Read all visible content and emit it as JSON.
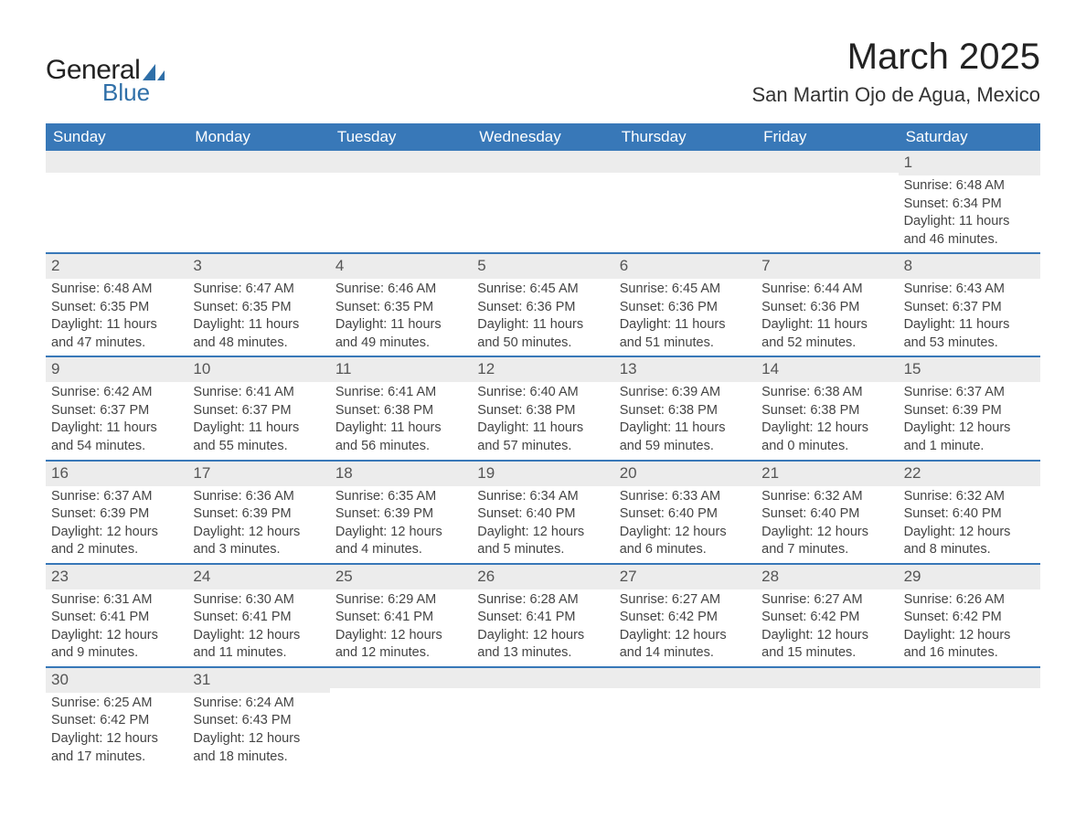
{
  "logo": {
    "general": "General",
    "blue": "Blue"
  },
  "title": "March 2025",
  "location": "San Martin Ojo de Agua, Mexico",
  "colors": {
    "header_bg": "#3878b8",
    "header_text": "#ffffff",
    "daynum_bg": "#ececec",
    "border": "#3878b8",
    "text": "#444444",
    "logo_blue": "#2f6fa8"
  },
  "dow": [
    "Sunday",
    "Monday",
    "Tuesday",
    "Wednesday",
    "Thursday",
    "Friday",
    "Saturday"
  ],
  "days": [
    {
      "n": "",
      "sr": "",
      "ss": "",
      "dl1": "",
      "dl2": ""
    },
    {
      "n": "",
      "sr": "",
      "ss": "",
      "dl1": "",
      "dl2": ""
    },
    {
      "n": "",
      "sr": "",
      "ss": "",
      "dl1": "",
      "dl2": ""
    },
    {
      "n": "",
      "sr": "",
      "ss": "",
      "dl1": "",
      "dl2": ""
    },
    {
      "n": "",
      "sr": "",
      "ss": "",
      "dl1": "",
      "dl2": ""
    },
    {
      "n": "",
      "sr": "",
      "ss": "",
      "dl1": "",
      "dl2": ""
    },
    {
      "n": "1",
      "sr": "Sunrise: 6:48 AM",
      "ss": "Sunset: 6:34 PM",
      "dl1": "Daylight: 11 hours",
      "dl2": "and 46 minutes."
    },
    {
      "n": "2",
      "sr": "Sunrise: 6:48 AM",
      "ss": "Sunset: 6:35 PM",
      "dl1": "Daylight: 11 hours",
      "dl2": "and 47 minutes."
    },
    {
      "n": "3",
      "sr": "Sunrise: 6:47 AM",
      "ss": "Sunset: 6:35 PM",
      "dl1": "Daylight: 11 hours",
      "dl2": "and 48 minutes."
    },
    {
      "n": "4",
      "sr": "Sunrise: 6:46 AM",
      "ss": "Sunset: 6:35 PM",
      "dl1": "Daylight: 11 hours",
      "dl2": "and 49 minutes."
    },
    {
      "n": "5",
      "sr": "Sunrise: 6:45 AM",
      "ss": "Sunset: 6:36 PM",
      "dl1": "Daylight: 11 hours",
      "dl2": "and 50 minutes."
    },
    {
      "n": "6",
      "sr": "Sunrise: 6:45 AM",
      "ss": "Sunset: 6:36 PM",
      "dl1": "Daylight: 11 hours",
      "dl2": "and 51 minutes."
    },
    {
      "n": "7",
      "sr": "Sunrise: 6:44 AM",
      "ss": "Sunset: 6:36 PM",
      "dl1": "Daylight: 11 hours",
      "dl2": "and 52 minutes."
    },
    {
      "n": "8",
      "sr": "Sunrise: 6:43 AM",
      "ss": "Sunset: 6:37 PM",
      "dl1": "Daylight: 11 hours",
      "dl2": "and 53 minutes."
    },
    {
      "n": "9",
      "sr": "Sunrise: 6:42 AM",
      "ss": "Sunset: 6:37 PM",
      "dl1": "Daylight: 11 hours",
      "dl2": "and 54 minutes."
    },
    {
      "n": "10",
      "sr": "Sunrise: 6:41 AM",
      "ss": "Sunset: 6:37 PM",
      "dl1": "Daylight: 11 hours",
      "dl2": "and 55 minutes."
    },
    {
      "n": "11",
      "sr": "Sunrise: 6:41 AM",
      "ss": "Sunset: 6:38 PM",
      "dl1": "Daylight: 11 hours",
      "dl2": "and 56 minutes."
    },
    {
      "n": "12",
      "sr": "Sunrise: 6:40 AM",
      "ss": "Sunset: 6:38 PM",
      "dl1": "Daylight: 11 hours",
      "dl2": "and 57 minutes."
    },
    {
      "n": "13",
      "sr": "Sunrise: 6:39 AM",
      "ss": "Sunset: 6:38 PM",
      "dl1": "Daylight: 11 hours",
      "dl2": "and 59 minutes."
    },
    {
      "n": "14",
      "sr": "Sunrise: 6:38 AM",
      "ss": "Sunset: 6:38 PM",
      "dl1": "Daylight: 12 hours",
      "dl2": "and 0 minutes."
    },
    {
      "n": "15",
      "sr": "Sunrise: 6:37 AM",
      "ss": "Sunset: 6:39 PM",
      "dl1": "Daylight: 12 hours",
      "dl2": "and 1 minute."
    },
    {
      "n": "16",
      "sr": "Sunrise: 6:37 AM",
      "ss": "Sunset: 6:39 PM",
      "dl1": "Daylight: 12 hours",
      "dl2": "and 2 minutes."
    },
    {
      "n": "17",
      "sr": "Sunrise: 6:36 AM",
      "ss": "Sunset: 6:39 PM",
      "dl1": "Daylight: 12 hours",
      "dl2": "and 3 minutes."
    },
    {
      "n": "18",
      "sr": "Sunrise: 6:35 AM",
      "ss": "Sunset: 6:39 PM",
      "dl1": "Daylight: 12 hours",
      "dl2": "and 4 minutes."
    },
    {
      "n": "19",
      "sr": "Sunrise: 6:34 AM",
      "ss": "Sunset: 6:40 PM",
      "dl1": "Daylight: 12 hours",
      "dl2": "and 5 minutes."
    },
    {
      "n": "20",
      "sr": "Sunrise: 6:33 AM",
      "ss": "Sunset: 6:40 PM",
      "dl1": "Daylight: 12 hours",
      "dl2": "and 6 minutes."
    },
    {
      "n": "21",
      "sr": "Sunrise: 6:32 AM",
      "ss": "Sunset: 6:40 PM",
      "dl1": "Daylight: 12 hours",
      "dl2": "and 7 minutes."
    },
    {
      "n": "22",
      "sr": "Sunrise: 6:32 AM",
      "ss": "Sunset: 6:40 PM",
      "dl1": "Daylight: 12 hours",
      "dl2": "and 8 minutes."
    },
    {
      "n": "23",
      "sr": "Sunrise: 6:31 AM",
      "ss": "Sunset: 6:41 PM",
      "dl1": "Daylight: 12 hours",
      "dl2": "and 9 minutes."
    },
    {
      "n": "24",
      "sr": "Sunrise: 6:30 AM",
      "ss": "Sunset: 6:41 PM",
      "dl1": "Daylight: 12 hours",
      "dl2": "and 11 minutes."
    },
    {
      "n": "25",
      "sr": "Sunrise: 6:29 AM",
      "ss": "Sunset: 6:41 PM",
      "dl1": "Daylight: 12 hours",
      "dl2": "and 12 minutes."
    },
    {
      "n": "26",
      "sr": "Sunrise: 6:28 AM",
      "ss": "Sunset: 6:41 PM",
      "dl1": "Daylight: 12 hours",
      "dl2": "and 13 minutes."
    },
    {
      "n": "27",
      "sr": "Sunrise: 6:27 AM",
      "ss": "Sunset: 6:42 PM",
      "dl1": "Daylight: 12 hours",
      "dl2": "and 14 minutes."
    },
    {
      "n": "28",
      "sr": "Sunrise: 6:27 AM",
      "ss": "Sunset: 6:42 PM",
      "dl1": "Daylight: 12 hours",
      "dl2": "and 15 minutes."
    },
    {
      "n": "29",
      "sr": "Sunrise: 6:26 AM",
      "ss": "Sunset: 6:42 PM",
      "dl1": "Daylight: 12 hours",
      "dl2": "and 16 minutes."
    },
    {
      "n": "30",
      "sr": "Sunrise: 6:25 AM",
      "ss": "Sunset: 6:42 PM",
      "dl1": "Daylight: 12 hours",
      "dl2": "and 17 minutes."
    },
    {
      "n": "31",
      "sr": "Sunrise: 6:24 AM",
      "ss": "Sunset: 6:43 PM",
      "dl1": "Daylight: 12 hours",
      "dl2": "and 18 minutes."
    },
    {
      "n": "",
      "sr": "",
      "ss": "",
      "dl1": "",
      "dl2": ""
    },
    {
      "n": "",
      "sr": "",
      "ss": "",
      "dl1": "",
      "dl2": ""
    },
    {
      "n": "",
      "sr": "",
      "ss": "",
      "dl1": "",
      "dl2": ""
    },
    {
      "n": "",
      "sr": "",
      "ss": "",
      "dl1": "",
      "dl2": ""
    },
    {
      "n": "",
      "sr": "",
      "ss": "",
      "dl1": "",
      "dl2": ""
    }
  ]
}
